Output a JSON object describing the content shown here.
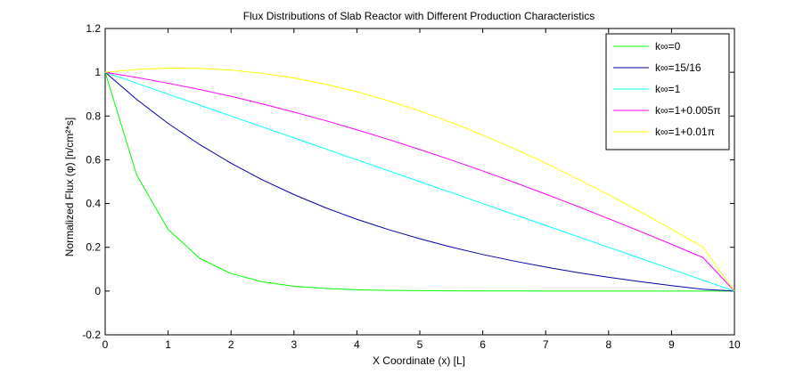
{
  "chart_data": {
    "type": "line",
    "title": "Flux Distributions of Slab Reactor with Different Production Characteristics",
    "xlabel": "X Coordinate (x) [L]",
    "ylabel": "Normalized Flux (φ) [n/cm²*s]",
    "xlim": [
      0,
      10
    ],
    "ylim": [
      -0.2,
      1.2
    ],
    "xticks": [
      0,
      1,
      2,
      3,
      4,
      5,
      6,
      7,
      8,
      9,
      10
    ],
    "yticks": [
      -0.2,
      0,
      0.2,
      0.4,
      0.6,
      0.8,
      1,
      1.2
    ],
    "grid": false,
    "legend_position": "top-right",
    "x": [
      0,
      0.5,
      1,
      1.5,
      2,
      2.5,
      3,
      3.5,
      4,
      4.5,
      5,
      5.5,
      6,
      6.5,
      7,
      7.5,
      8,
      8.5,
      9,
      9.5,
      10
    ],
    "series": [
      {
        "name": "k∞=0",
        "color": "#00ff00",
        "values": [
          1.0,
          0.531,
          0.282,
          0.15,
          0.08,
          0.042,
          0.022,
          0.012,
          0.006,
          0.003,
          0.002,
          0.001,
          0.0004,
          0.0002,
          0.0001,
          0.0,
          0.0,
          0.0,
          0.0,
          0.0,
          0.0
        ]
      },
      {
        "name": "k∞=15/16",
        "color": "#0000aa",
        "values": [
          1.0,
          0.876,
          0.766,
          0.67,
          0.584,
          0.508,
          0.441,
          0.381,
          0.328,
          0.281,
          0.239,
          0.201,
          0.167,
          0.137,
          0.11,
          0.085,
          0.063,
          0.043,
          0.025,
          0.008,
          0.0
        ]
      },
      {
        "name": "k∞=1",
        "color": "#00ffff",
        "values": [
          1.0,
          0.95,
          0.9,
          0.85,
          0.8,
          0.75,
          0.7,
          0.65,
          0.6,
          0.55,
          0.5,
          0.45,
          0.4,
          0.35,
          0.3,
          0.25,
          0.2,
          0.15,
          0.1,
          0.05,
          0.0
        ]
      },
      {
        "name": "k∞=1+0.005π",
        "color": "#ff00ff",
        "values": [
          1.0,
          0.976,
          0.95,
          0.921,
          0.89,
          0.855,
          0.818,
          0.779,
          0.737,
          0.693,
          0.647,
          0.599,
          0.549,
          0.497,
          0.443,
          0.388,
          0.331,
          0.273,
          0.214,
          0.153,
          0.0
        ]
      },
      {
        "name": "k∞=1+0.01π",
        "color": "#ffff00",
        "values": [
          1.0,
          1.013,
          1.019,
          1.018,
          1.01,
          0.995,
          0.974,
          0.945,
          0.911,
          0.87,
          0.823,
          0.771,
          0.713,
          0.651,
          0.585,
          0.514,
          0.44,
          0.363,
          0.283,
          0.2,
          0.0
        ]
      }
    ]
  }
}
